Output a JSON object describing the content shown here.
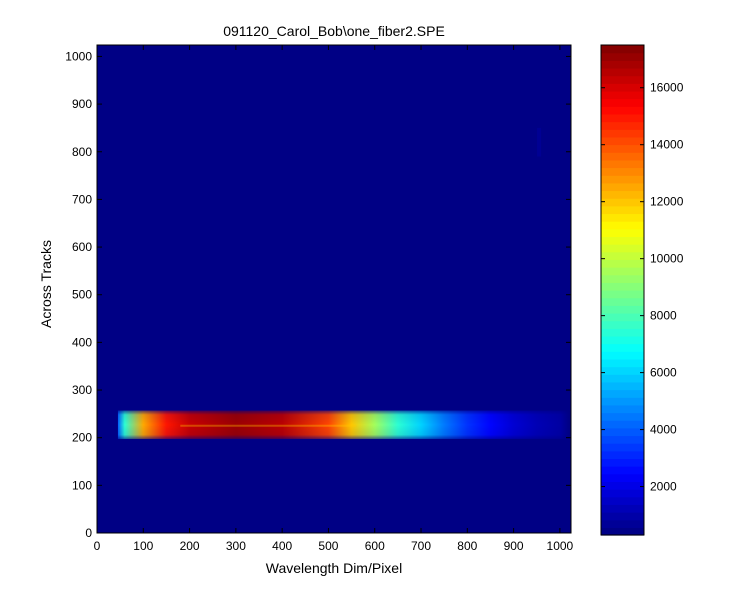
{
  "chart_data": {
    "type": "heatmap",
    "title": "091120_Carol_Bob\\one_fiber2.SPE",
    "xlabel": "Wavelength Dim/Pixel",
    "ylabel": "Across Tracks",
    "xlim": [
      0,
      1024
    ],
    "ylim": [
      0,
      1024
    ],
    "x_ticks": [
      0,
      100,
      200,
      300,
      400,
      500,
      600,
      700,
      800,
      900,
      1000
    ],
    "y_ticks": [
      0,
      100,
      200,
      300,
      400,
      500,
      600,
      700,
      800,
      900,
      1000
    ],
    "colormap": "jet",
    "color_range": [
      300,
      17500
    ],
    "colorbar_ticks": [
      2000,
      4000,
      6000,
      8000,
      10000,
      12000,
      14000,
      16000
    ],
    "background_value": 400,
    "band": {
      "x_start": 45,
      "x_end": 1000,
      "y_center": 225,
      "y_bottom": 197,
      "y_top": 257,
      "intensity_profile": [
        {
          "x": 45,
          "value": 4000
        },
        {
          "x": 60,
          "value": 7500
        },
        {
          "x": 100,
          "value": 12500
        },
        {
          "x": 150,
          "value": 15000
        },
        {
          "x": 200,
          "value": 16300
        },
        {
          "x": 300,
          "value": 17000
        },
        {
          "x": 400,
          "value": 16500
        },
        {
          "x": 500,
          "value": 14200
        },
        {
          "x": 550,
          "value": 12000
        },
        {
          "x": 600,
          "value": 9500
        },
        {
          "x": 650,
          "value": 7500
        },
        {
          "x": 700,
          "value": 6000
        },
        {
          "x": 750,
          "value": 4500
        },
        {
          "x": 800,
          "value": 3300
        },
        {
          "x": 850,
          "value": 2500
        },
        {
          "x": 900,
          "value": 1700
        },
        {
          "x": 950,
          "value": 1200
        },
        {
          "x": 1000,
          "value": 900
        }
      ]
    },
    "faint_feature": {
      "x": 955,
      "y_range": [
        790,
        850
      ],
      "value": 800
    },
    "grid": false,
    "colorbar_position": "right"
  }
}
